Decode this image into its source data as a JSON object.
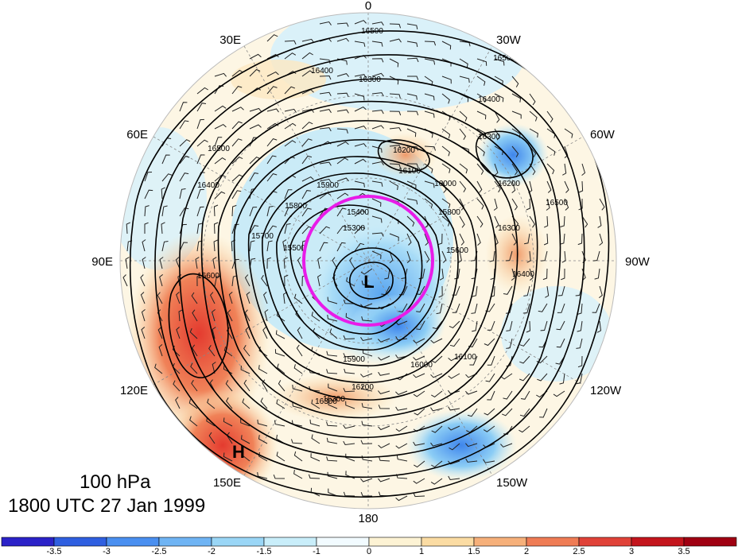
{
  "map": {
    "level_label": "100 hPa",
    "time_label": "1800 UTC 27 Jan 1999",
    "longitude_labels": {
      "top": "0",
      "bottom": "180",
      "left": "90E",
      "right": "90W",
      "upper_left_1": "30E",
      "upper_left_2": "60E",
      "lower_left_1": "120E",
      "lower_left_2": "150E",
      "upper_right_1": "30W",
      "upper_right_2": "60W",
      "lower_right_1": "120W",
      "lower_right_2": "150W"
    },
    "low_marker": "L",
    "high_marker": "H",
    "contour_labels": [
      "16500",
      "16500",
      "16400",
      "16300",
      "16400",
      "16300",
      "16200",
      "16100",
      "16000",
      "15900",
      "15800",
      "15700",
      "15600",
      "15500",
      "15400",
      "15300",
      "16200",
      "16300",
      "16400",
      "16500",
      "16600",
      "16500",
      "16400",
      "16300",
      "16100",
      "16000",
      "15900",
      "15800",
      "16200",
      "16300"
    ],
    "colorbar": {
      "ticks": [
        "-3.5",
        "-3",
        "-2.5",
        "-2",
        "-1.5",
        "-1",
        "0",
        "1",
        "1.5",
        "2",
        "2.5",
        "3",
        "3.5"
      ],
      "colors": [
        "#2b22c8",
        "#2f5fe0",
        "#4a8ff0",
        "#6fb4f4",
        "#9ad6f6",
        "#c9eefa",
        "#f2fbff",
        "#fdf3d4",
        "#fbdca3",
        "#f6b07a",
        "#ef7c55",
        "#e04238",
        "#c4151d",
        "#a00012"
      ]
    },
    "colors": {
      "low_circle": "#e81ce8",
      "contours": "#000000"
    }
  }
}
